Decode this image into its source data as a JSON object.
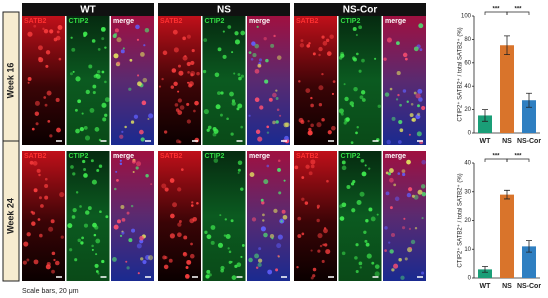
{
  "figure": {
    "groups": [
      "WT",
      "NS",
      "NS-Cor"
    ],
    "rows": [
      "Week 16",
      "Week 24"
    ],
    "channels": [
      "SATB2",
      "CTIP2",
      "merge"
    ],
    "scale_note": "Scale bars, 20 μm"
  },
  "chart_data": [
    {
      "type": "bar",
      "ylabel": "CTIP2⁺ SATB2⁺ / total SATB2⁺ (%)",
      "categories": [
        "WT",
        "NS",
        "NS-Cor"
      ],
      "values": [
        15,
        75,
        28
      ],
      "errors": [
        5,
        8,
        6
      ],
      "colors": [
        "#1a9e77",
        "#d9742b",
        "#2f7fc1"
      ],
      "ylim": [
        0,
        100
      ],
      "yticks": [
        0,
        20,
        40,
        60,
        80,
        100
      ],
      "annotations": [
        "***",
        "***"
      ]
    },
    {
      "type": "bar",
      "ylabel": "CTIP2⁺ SATB2⁺ / total SATB2⁺ (%)",
      "categories": [
        "WT",
        "NS",
        "NS-Cor"
      ],
      "values": [
        3,
        29,
        11
      ],
      "errors": [
        1,
        1.5,
        2
      ],
      "colors": [
        "#1a9e77",
        "#d9742b",
        "#2f7fc1"
      ],
      "ylim": [
        0,
        40
      ],
      "yticks": [
        0,
        10,
        20,
        30,
        40
      ],
      "annotations": [
        "***",
        "***"
      ]
    }
  ]
}
